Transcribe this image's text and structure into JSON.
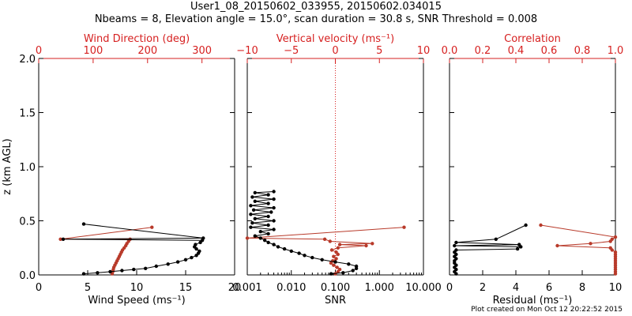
{
  "header": {
    "title": "User1_08_20150602_033955, 20150602.034015",
    "subtitle": "Nbeams = 8, Elevation angle = 15.0°, scan duration = 30.8 s, SNR Threshold = 0.008"
  },
  "footer": {
    "text": "Plot created on Mon Oct 12 20:22:52 2015"
  },
  "colors": {
    "axis": "#000000",
    "secondary": "#d62020",
    "data_black": "#000000",
    "data_red": "#b83a2a"
  },
  "chart_data": [
    {
      "type": "scatter",
      "ylabel": "z (km AGL)",
      "ylim": [
        0,
        2.0
      ],
      "yticks": [
        "0.0",
        "0.5",
        "1.0",
        "1.5",
        "2.0"
      ],
      "yticks_vals": [
        0,
        0.5,
        1.0,
        1.5,
        2.0
      ],
      "xlabel_bottom": "Wind Speed (ms⁻¹)",
      "xlim_bottom": [
        0,
        20
      ],
      "xticks_bottom": [
        "0",
        "5",
        "10",
        "15",
        "20"
      ],
      "xticks_bottom_vals": [
        0,
        5,
        10,
        15,
        20
      ],
      "xlabel_top": "Wind Direction (deg)",
      "xlim_top": [
        0,
        360
      ],
      "xticks_top": [
        "0",
        "100",
        "200",
        "300"
      ],
      "xticks_top_vals": [
        0,
        100,
        200,
        300
      ],
      "series": [
        {
          "axis": "bottom",
          "color": "black",
          "points": [
            [
              4.6,
              0.01
            ],
            [
              6.0,
              0.02
            ],
            [
              7.3,
              0.03
            ],
            [
              8.5,
              0.04
            ],
            [
              9.7,
              0.05
            ],
            [
              10.9,
              0.06
            ],
            [
              12.0,
              0.08
            ],
            [
              13.2,
              0.1
            ],
            [
              14.2,
              0.12
            ],
            [
              15.0,
              0.14
            ],
            [
              15.6,
              0.16
            ],
            [
              16.1,
              0.18
            ],
            [
              16.3,
              0.2
            ],
            [
              16.4,
              0.22
            ],
            [
              16.1,
              0.24
            ],
            [
              15.9,
              0.26
            ],
            [
              16.0,
              0.28
            ],
            [
              16.5,
              0.3
            ],
            [
              16.7,
              0.32
            ],
            [
              2.5,
              0.33
            ],
            [
              16.8,
              0.34
            ],
            [
              4.6,
              0.47
            ]
          ]
        },
        {
          "axis": "top",
          "color": "red",
          "points": [
            [
              135,
              0.01
            ],
            [
              136,
              0.03
            ],
            [
              137,
              0.05
            ],
            [
              138,
              0.07
            ],
            [
              140,
              0.09
            ],
            [
              142,
              0.11
            ],
            [
              144,
              0.13
            ],
            [
              146,
              0.15
            ],
            [
              148,
              0.17
            ],
            [
              150,
              0.19
            ],
            [
              152,
              0.21
            ],
            [
              154,
              0.23
            ],
            [
              157,
              0.25
            ],
            [
              160,
              0.27
            ],
            [
              162,
              0.29
            ],
            [
              165,
              0.31
            ],
            [
              168,
              0.33
            ],
            [
              40,
              0.33
            ],
            [
              208,
              0.44
            ]
          ]
        }
      ]
    },
    {
      "type": "scatter",
      "xlabel_bottom": "SNR",
      "xscale_bottom": "log",
      "xlim_bottom": [
        0.001,
        10
      ],
      "xticks_bottom": [
        "0.001",
        "0.010",
        "0.100",
        "1.000",
        "10.000"
      ],
      "xticks_bottom_vals": [
        0.001,
        0.01,
        0.1,
        1,
        10
      ],
      "xlabel_top": "Vertical velocity (ms⁻¹)",
      "xlim_top": [
        -10,
        10
      ],
      "xticks_top": [
        "−10",
        "−5",
        "0",
        "5",
        "10"
      ],
      "xticks_top_vals": [
        -10,
        -5,
        0,
        5,
        10
      ],
      "reference_line": {
        "axis": "top",
        "x": 0,
        "style": "dotted",
        "color": "red"
      },
      "series": [
        {
          "axis": "bottom",
          "color": "black",
          "points": [
            [
              0.08,
              0.01
            ],
            [
              0.15,
              0.02
            ],
            [
              0.25,
              0.04
            ],
            [
              0.3,
              0.06
            ],
            [
              0.3,
              0.08
            ],
            [
              0.2,
              0.1
            ],
            [
              0.1,
              0.12
            ],
            [
              0.05,
              0.14
            ],
            [
              0.03,
              0.16
            ],
            [
              0.02,
              0.18
            ],
            [
              0.015,
              0.2
            ],
            [
              0.01,
              0.22
            ],
            [
              0.007,
              0.24
            ],
            [
              0.005,
              0.26
            ],
            [
              0.004,
              0.28
            ],
            [
              0.003,
              0.3
            ],
            [
              0.0025,
              0.32
            ],
            [
              0.002,
              0.34
            ],
            [
              0.0015,
              0.36
            ],
            [
              0.003,
              0.38
            ],
            [
              0.002,
              0.4
            ],
            [
              0.004,
              0.42
            ],
            [
              0.0012,
              0.44
            ],
            [
              0.003,
              0.46
            ],
            [
              0.0013,
              0.48
            ],
            [
              0.004,
              0.5
            ],
            [
              0.0015,
              0.52
            ],
            [
              0.003,
              0.54
            ],
            [
              0.0012,
              0.56
            ],
            [
              0.0035,
              0.58
            ],
            [
              0.0014,
              0.6
            ],
            [
              0.004,
              0.62
            ],
            [
              0.0012,
              0.64
            ],
            [
              0.003,
              0.66
            ],
            [
              0.0015,
              0.68
            ],
            [
              0.004,
              0.7
            ],
            [
              0.0013,
              0.72
            ],
            [
              0.003,
              0.74
            ],
            [
              0.0015,
              0.76
            ],
            [
              0.004,
              0.77
            ]
          ]
        },
        {
          "axis": "top",
          "color": "red",
          "points": [
            [
              0.0,
              0.01
            ],
            [
              0.3,
              0.03
            ],
            [
              0.5,
              0.05
            ],
            [
              0.2,
              0.07
            ],
            [
              -0.2,
              0.09
            ],
            [
              -0.5,
              0.11
            ],
            [
              -0.3,
              0.13
            ],
            [
              0.1,
              0.15
            ],
            [
              -0.2,
              0.17
            ],
            [
              0.3,
              0.19
            ],
            [
              0.1,
              0.21
            ],
            [
              -0.4,
              0.23
            ],
            [
              0.3,
              0.25
            ],
            [
              3.5,
              0.27
            ],
            [
              0.5,
              0.28
            ],
            [
              4.2,
              0.29
            ],
            [
              -0.6,
              0.31
            ],
            [
              -1.2,
              0.33
            ],
            [
              -10,
              0.34
            ],
            [
              7.8,
              0.44
            ]
          ]
        }
      ]
    },
    {
      "type": "scatter",
      "xlabel_bottom": "Residual (ms⁻¹)",
      "xlim_bottom": [
        0,
        10
      ],
      "xticks_bottom": [
        "0",
        "2",
        "4",
        "6",
        "8",
        "10"
      ],
      "xticks_bottom_vals": [
        0,
        2,
        4,
        6,
        8,
        10
      ],
      "xlabel_top": "Correlation",
      "xlim_top": [
        0,
        1
      ],
      "xticks_top": [
        "0.0",
        "0.2",
        "0.4",
        "0.6",
        "0.8",
        "1.0"
      ],
      "xticks_top_vals": [
        0,
        0.2,
        0.4,
        0.6,
        0.8,
        1.0
      ],
      "series": [
        {
          "axis": "bottom",
          "color": "black",
          "points": [
            [
              0.4,
              0.01
            ],
            [
              0.3,
              0.03
            ],
            [
              0.4,
              0.05
            ],
            [
              0.3,
              0.07
            ],
            [
              0.4,
              0.09
            ],
            [
              0.3,
              0.11
            ],
            [
              0.3,
              0.13
            ],
            [
              0.4,
              0.15
            ],
            [
              0.3,
              0.17
            ],
            [
              0.4,
              0.19
            ],
            [
              0.3,
              0.21
            ],
            [
              0.4,
              0.23
            ],
            [
              4.1,
              0.24
            ],
            [
              4.3,
              0.26
            ],
            [
              0.3,
              0.27
            ],
            [
              4.2,
              0.28
            ],
            [
              0.4,
              0.3
            ],
            [
              2.8,
              0.33
            ],
            [
              4.6,
              0.46
            ]
          ]
        },
        {
          "axis": "top",
          "color": "red",
          "points": [
            [
              1.0,
              0.01
            ],
            [
              1.0,
              0.03
            ],
            [
              1.0,
              0.05
            ],
            [
              1.0,
              0.07
            ],
            [
              1.0,
              0.09
            ],
            [
              1.0,
              0.11
            ],
            [
              1.0,
              0.13
            ],
            [
              1.0,
              0.15
            ],
            [
              1.0,
              0.17
            ],
            [
              1.0,
              0.19
            ],
            [
              1.0,
              0.21
            ],
            [
              0.98,
              0.23
            ],
            [
              0.97,
              0.25
            ],
            [
              0.65,
              0.27
            ],
            [
              0.85,
              0.29
            ],
            [
              0.97,
              0.31
            ],
            [
              0.98,
              0.33
            ],
            [
              1.0,
              0.35
            ],
            [
              0.55,
              0.46
            ]
          ]
        }
      ]
    }
  ]
}
